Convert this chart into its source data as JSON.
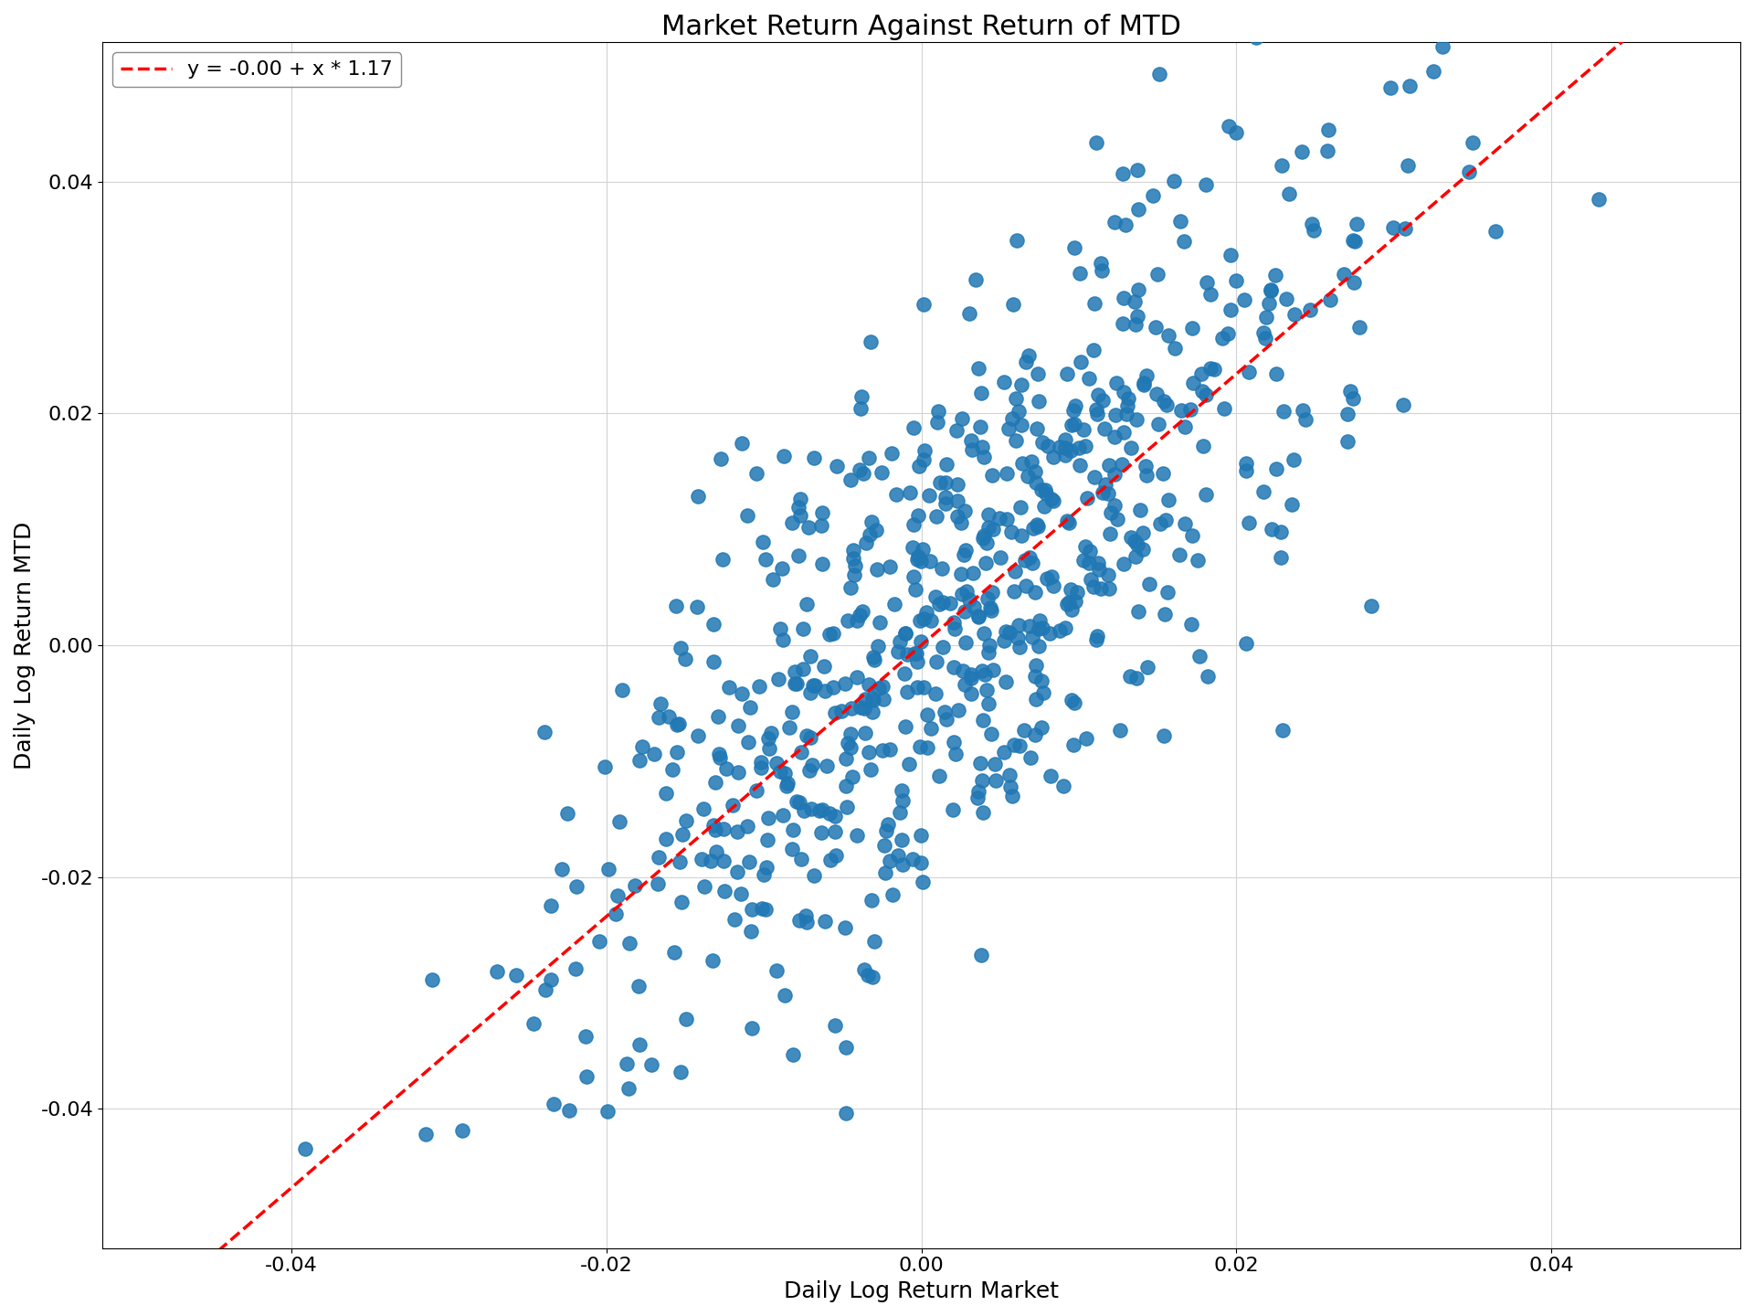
{
  "title": "Market Return Against Return of MTD",
  "xlabel": "Daily Log Return Market",
  "ylabel": "Daily Log Return MTD",
  "legend_label": "y = -0.00 + x * 1.17",
  "intercept": -0.0,
  "slope": 1.17,
  "xlim": [
    -0.052,
    0.052
  ],
  "ylim": [
    -0.052,
    0.052
  ],
  "xticks": [
    -0.04,
    -0.02,
    0.0,
    0.02,
    0.04
  ],
  "yticks": [
    -0.04,
    -0.02,
    0.0,
    0.02,
    0.04
  ],
  "scatter_color": "#1f77b4",
  "line_color": "#ff0000",
  "marker_size": 120,
  "n_points": 700,
  "random_seed": 42,
  "noise_std": 0.012,
  "market_std": 0.013,
  "title_fontsize": 22,
  "label_fontsize": 18,
  "tick_fontsize": 16,
  "legend_fontsize": 16
}
